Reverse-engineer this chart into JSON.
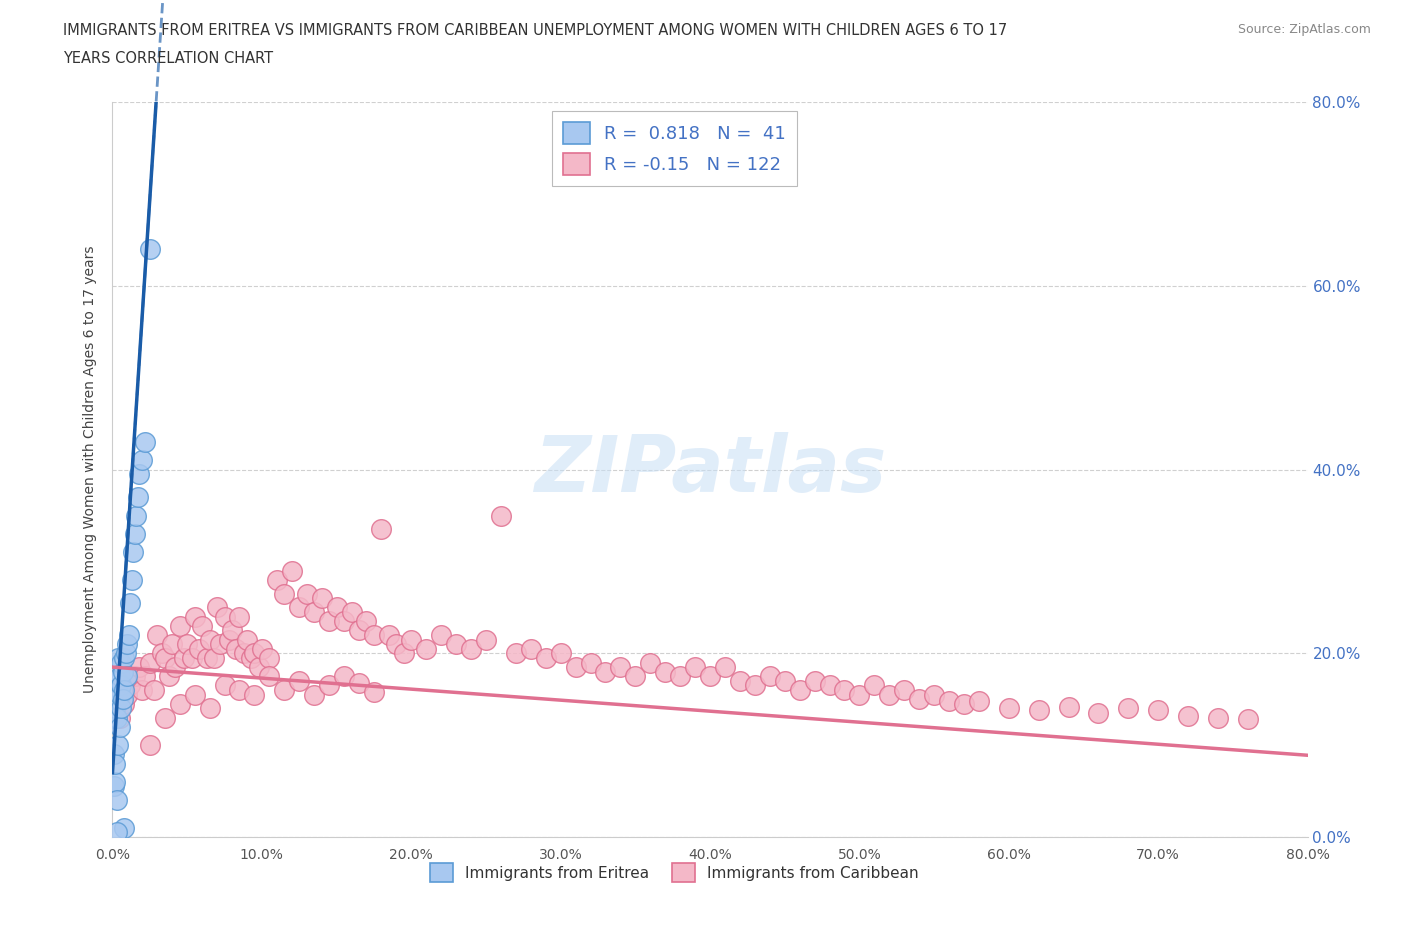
{
  "title_line1": "IMMIGRANTS FROM ERITREA VS IMMIGRANTS FROM CARIBBEAN UNEMPLOYMENT AMONG WOMEN WITH CHILDREN AGES 6 TO 17",
  "title_line2": "YEARS CORRELATION CHART",
  "source": "Source: ZipAtlas.com",
  "ylabel": "Unemployment Among Women with Children Ages 6 to 17 years",
  "xlim": [
    0.0,
    0.8
  ],
  "ylim": [
    0.0,
    0.8
  ],
  "xticks": [
    0.0,
    0.1,
    0.2,
    0.3,
    0.4,
    0.5,
    0.6,
    0.7,
    0.8
  ],
  "yticks": [
    0.0,
    0.2,
    0.4,
    0.6,
    0.8
  ],
  "ytick_labels_right": [
    "0.0%",
    "20.0%",
    "40.0%",
    "60.0%",
    "80.0%"
  ],
  "xtick_labels": [
    "0.0%",
    "10.0%",
    "20.0%",
    "30.0%",
    "40.0%",
    "50.0%",
    "60.0%",
    "70.0%",
    "80.0%"
  ],
  "eritrea_R": 0.818,
  "eritrea_N": 41,
  "caribbean_R": -0.15,
  "caribbean_N": 122,
  "eritrea_color": "#a8c8f0",
  "eritrea_edge_color": "#5b9bd5",
  "caribbean_color": "#f4b8c8",
  "caribbean_edge_color": "#e07090",
  "trend_eritrea_color": "#1a5ca8",
  "trend_caribbean_color": "#e07090",
  "legend_text_color": "#4472c4",
  "watermark": "ZIPatlas",
  "background_color": "#ffffff",
  "grid_color": "#d0d0d0",
  "eritrea_scatter_x": [
    0.001,
    0.001,
    0.001,
    0.002,
    0.002,
    0.002,
    0.002,
    0.003,
    0.003,
    0.003,
    0.003,
    0.004,
    0.004,
    0.004,
    0.004,
    0.005,
    0.005,
    0.005,
    0.006,
    0.006,
    0.006,
    0.007,
    0.007,
    0.008,
    0.008,
    0.009,
    0.01,
    0.01,
    0.011,
    0.012,
    0.013,
    0.014,
    0.015,
    0.016,
    0.017,
    0.018,
    0.02,
    0.022,
    0.025,
    0.008,
    0.003
  ],
  "eritrea_scatter_y": [
    0.055,
    0.09,
    0.13,
    0.06,
    0.08,
    0.14,
    0.16,
    0.04,
    0.13,
    0.15,
    0.17,
    0.1,
    0.15,
    0.17,
    0.195,
    0.12,
    0.155,
    0.175,
    0.14,
    0.165,
    0.19,
    0.15,
    0.18,
    0.16,
    0.195,
    0.2,
    0.175,
    0.21,
    0.22,
    0.255,
    0.28,
    0.31,
    0.33,
    0.35,
    0.37,
    0.395,
    0.41,
    0.43,
    0.64,
    0.01,
    0.005
  ],
  "caribbean_scatter_x": [
    0.005,
    0.008,
    0.01,
    0.012,
    0.015,
    0.018,
    0.02,
    0.022,
    0.025,
    0.028,
    0.03,
    0.033,
    0.035,
    0.038,
    0.04,
    0.042,
    0.045,
    0.048,
    0.05,
    0.053,
    0.055,
    0.058,
    0.06,
    0.063,
    0.065,
    0.068,
    0.07,
    0.072,
    0.075,
    0.078,
    0.08,
    0.083,
    0.085,
    0.088,
    0.09,
    0.093,
    0.095,
    0.098,
    0.1,
    0.105,
    0.11,
    0.115,
    0.12,
    0.125,
    0.13,
    0.135,
    0.14,
    0.145,
    0.15,
    0.155,
    0.16,
    0.165,
    0.17,
    0.175,
    0.18,
    0.185,
    0.19,
    0.195,
    0.2,
    0.21,
    0.22,
    0.23,
    0.24,
    0.25,
    0.26,
    0.27,
    0.28,
    0.29,
    0.3,
    0.31,
    0.32,
    0.33,
    0.34,
    0.35,
    0.36,
    0.37,
    0.38,
    0.39,
    0.4,
    0.41,
    0.42,
    0.43,
    0.44,
    0.45,
    0.46,
    0.47,
    0.48,
    0.49,
    0.5,
    0.51,
    0.52,
    0.53,
    0.54,
    0.55,
    0.56,
    0.57,
    0.58,
    0.6,
    0.62,
    0.64,
    0.66,
    0.68,
    0.7,
    0.72,
    0.74,
    0.76,
    0.025,
    0.035,
    0.045,
    0.055,
    0.065,
    0.075,
    0.085,
    0.095,
    0.105,
    0.115,
    0.125,
    0.135,
    0.145,
    0.155,
    0.165,
    0.175
  ],
  "caribbean_scatter_y": [
    0.13,
    0.145,
    0.155,
    0.165,
    0.175,
    0.185,
    0.16,
    0.175,
    0.19,
    0.16,
    0.22,
    0.2,
    0.195,
    0.175,
    0.21,
    0.185,
    0.23,
    0.195,
    0.21,
    0.195,
    0.24,
    0.205,
    0.23,
    0.195,
    0.215,
    0.195,
    0.25,
    0.21,
    0.24,
    0.215,
    0.225,
    0.205,
    0.24,
    0.2,
    0.215,
    0.195,
    0.2,
    0.185,
    0.205,
    0.195,
    0.28,
    0.265,
    0.29,
    0.25,
    0.265,
    0.245,
    0.26,
    0.235,
    0.25,
    0.235,
    0.245,
    0.225,
    0.235,
    0.22,
    0.335,
    0.22,
    0.21,
    0.2,
    0.215,
    0.205,
    0.22,
    0.21,
    0.205,
    0.215,
    0.35,
    0.2,
    0.205,
    0.195,
    0.2,
    0.185,
    0.19,
    0.18,
    0.185,
    0.175,
    0.19,
    0.18,
    0.175,
    0.185,
    0.175,
    0.185,
    0.17,
    0.165,
    0.175,
    0.17,
    0.16,
    0.17,
    0.165,
    0.16,
    0.155,
    0.165,
    0.155,
    0.16,
    0.15,
    0.155,
    0.148,
    0.145,
    0.148,
    0.14,
    0.138,
    0.142,
    0.135,
    0.14,
    0.138,
    0.132,
    0.13,
    0.128,
    0.1,
    0.13,
    0.145,
    0.155,
    0.14,
    0.165,
    0.16,
    0.155,
    0.175,
    0.16,
    0.17,
    0.155,
    0.165,
    0.175,
    0.168,
    0.158
  ],
  "trend_eri_slope": 25.0,
  "trend_eri_intercept": 0.07,
  "trend_car_slope": -0.12,
  "trend_car_intercept": 0.185
}
